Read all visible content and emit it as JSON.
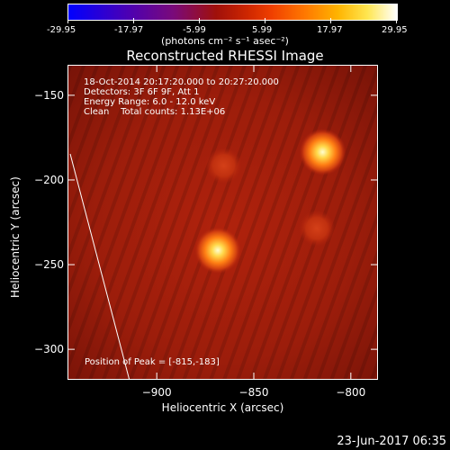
{
  "colorbar": {
    "ticks": [
      "-29.95",
      "-17.97",
      "-5.99",
      "5.99",
      "17.97",
      "29.95"
    ],
    "unit": "(photons cm⁻² s⁻¹ asec⁻²)"
  },
  "chart_data": {
    "type": "heatmap",
    "title": "Reconstructed RHESSI Image",
    "xlabel": "Heliocentric X (arcsec)",
    "ylabel": "Heliocentric Y (arcsec)",
    "xlim": [
      -946,
      -786
    ],
    "ylim": [
      -318,
      -132
    ],
    "xticks": [
      -900,
      -850,
      -800
    ],
    "yticks": [
      -150,
      -200,
      -250,
      -300
    ],
    "colorbar_range": [
      -29.95,
      29.95
    ],
    "sources": [
      {
        "x": -815,
        "y": -183,
        "intensity": 1.0
      },
      {
        "x": -869,
        "y": -241,
        "intensity": 0.9
      },
      {
        "x": -866,
        "y": -191,
        "intensity": 0.3
      },
      {
        "x": -818,
        "y": -228,
        "intensity": 0.25
      }
    ],
    "annotations": {
      "line1": "18-Oct-2014 20:17:20.000 to 20:27:20.000",
      "line2": "Detectors: 3F 6F 9F, Att 1",
      "line3": "Energy Range: 6.0 - 12.0 keV",
      "line4": "Clean    Total counts: 1.13E+06",
      "peak": "Position of Peak = [-815,-183]"
    }
  },
  "footer": {
    "date": "23-Jun-2017 06:35"
  }
}
